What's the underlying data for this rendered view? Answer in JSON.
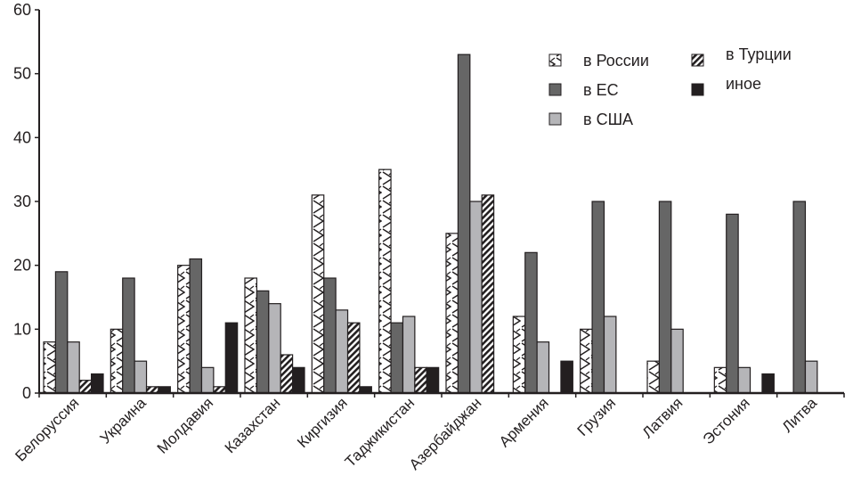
{
  "chart_data": {
    "type": "bar",
    "title": "",
    "xlabel": "",
    "ylabel": "",
    "ylim": [
      0,
      60
    ],
    "yticks": [
      0,
      10,
      20,
      30,
      40,
      50,
      60
    ],
    "grid": false,
    "legend_position": "top-right",
    "categories": [
      "Белоруссия",
      "Украина",
      "Молдавия",
      "Казахстан",
      "Киргизия",
      "Таджикистан",
      "Азербайджан",
      "Армения",
      "Грузия",
      "Латвия",
      "Эстония",
      "Литва"
    ],
    "series": [
      {
        "name": "в России",
        "pattern": "crosshatch",
        "color": "#ffffff",
        "values": [
          8,
          10,
          20,
          18,
          31,
          35,
          25,
          12,
          10,
          5,
          4,
          0
        ]
      },
      {
        "name": "в ЕС",
        "pattern": "solid",
        "color": "#666666",
        "values": [
          19,
          18,
          21,
          16,
          18,
          11,
          53,
          22,
          30,
          30,
          28,
          30
        ]
      },
      {
        "name": "в США",
        "pattern": "solid",
        "color": "#b5b5b8",
        "values": [
          8,
          5,
          4,
          14,
          13,
          12,
          30,
          8,
          12,
          10,
          4,
          5
        ]
      },
      {
        "name": "в Турции",
        "pattern": "diagonal-stripes",
        "color": "#231f20",
        "values": [
          2,
          1,
          1,
          6,
          11,
          4,
          31,
          0,
          0,
          0,
          0,
          0
        ]
      },
      {
        "name": "иное",
        "pattern": "solid",
        "color": "#231f20",
        "values": [
          3,
          1,
          11,
          4,
          1,
          4,
          0,
          5,
          0,
          0,
          3,
          0
        ]
      }
    ],
    "legend": {
      "columns": [
        [
          "в России",
          "в ЕС",
          "в США"
        ],
        [
          "в Турции",
          "иное"
        ]
      ]
    }
  }
}
